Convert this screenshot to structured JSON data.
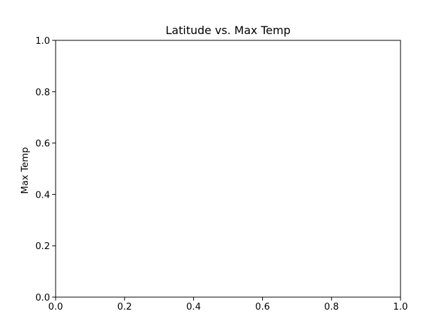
{
  "chart_data": {
    "type": "scatter",
    "title": "Latitude vs. Max Temp",
    "xlabel": "",
    "ylabel": "Max Temp",
    "xlim": [
      0.0,
      1.0
    ],
    "ylim": [
      0.0,
      1.0
    ],
    "xticks": [
      "0.0",
      "0.2",
      "0.4",
      "0.6",
      "0.8",
      "1.0"
    ],
    "yticks": [
      "0.0",
      "0.2",
      "0.4",
      "0.6",
      "0.8",
      "1.0"
    ],
    "grid": false,
    "series": [
      {
        "x": [],
        "y": []
      }
    ]
  }
}
